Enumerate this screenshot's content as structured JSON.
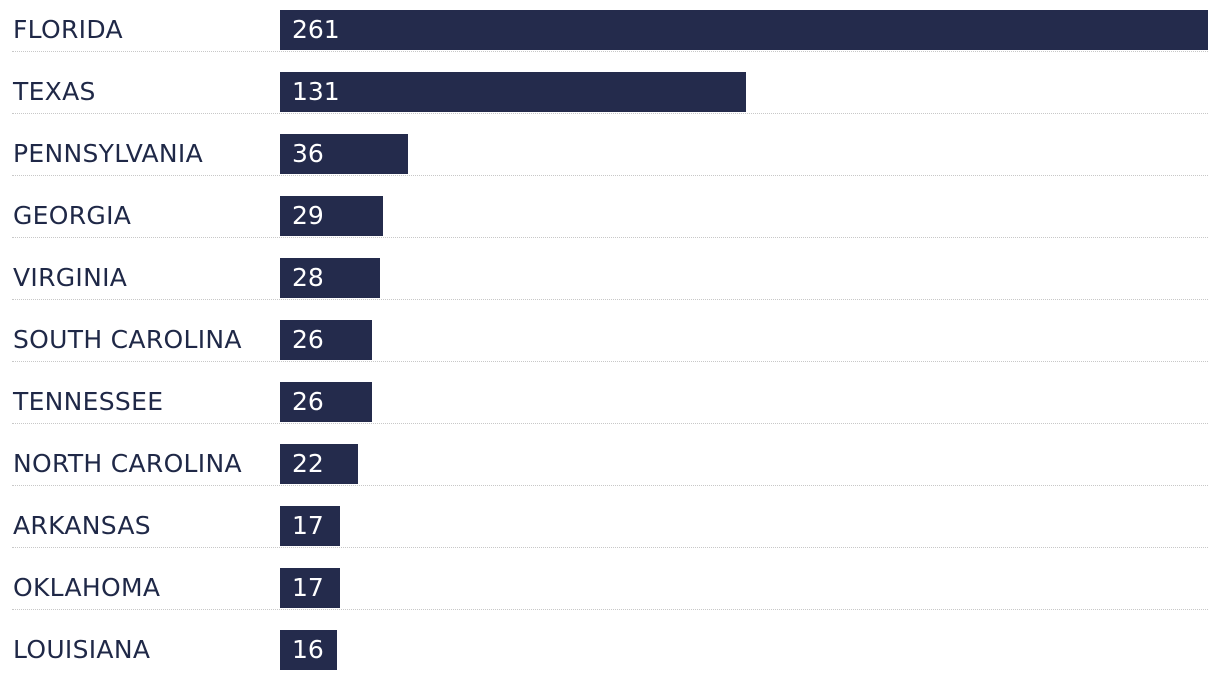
{
  "chart_data": {
    "type": "bar",
    "orientation": "horizontal",
    "categories": [
      "FLORIDA",
      "TEXAS",
      "PENNSYLVANIA",
      "GEORGIA",
      "VIRGINIA",
      "SOUTH CAROLINA",
      "TENNESSEE",
      "NORTH CAROLINA",
      "ARKANSAS",
      "OKLAHOMA",
      "LOUISIANA"
    ],
    "values": [
      261,
      131,
      36,
      29,
      28,
      26,
      26,
      22,
      17,
      17,
      16
    ],
    "title": "",
    "xlabel": "",
    "ylabel": "",
    "xlim": [
      0,
      261
    ],
    "grid": "dotted horizontal row separators",
    "legend": "none",
    "colors": {
      "bar": "#242b4c",
      "label": "#1f2847",
      "value_text": "#ffffff",
      "divider": "#c8c8c8"
    }
  }
}
